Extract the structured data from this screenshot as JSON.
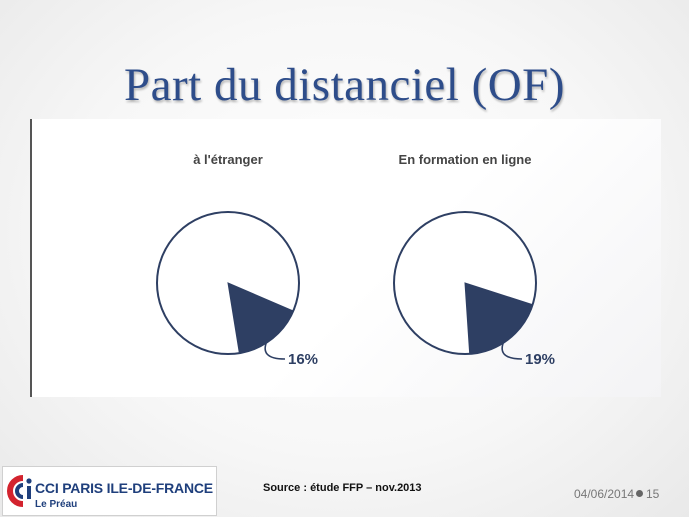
{
  "slide": {
    "title": "Part du distanciel (OF)",
    "source": "Source : étude FFP – nov.2013",
    "date": "04/06/2014",
    "page_number": "15"
  },
  "logo": {
    "main": "CCI PARIS ILE-DE-FRANCE",
    "sub": "Le Préau"
  },
  "colors": {
    "title": "#2e4d8a",
    "slice": "#2e3f63",
    "pie_outline": "#2e3f63",
    "logo_red": "#d3232e",
    "logo_blue": "#1f3f7c"
  },
  "chart_data": [
    {
      "type": "pie",
      "title": "à l'étranger",
      "slices": [
        {
          "label": "16%",
          "value": 16,
          "highlighted": true
        },
        {
          "value": 84
        }
      ]
    },
    {
      "type": "pie",
      "title": "En formation en ligne",
      "slices": [
        {
          "label": "19%",
          "value": 19,
          "highlighted": true
        },
        {
          "value": 81
        }
      ]
    }
  ]
}
